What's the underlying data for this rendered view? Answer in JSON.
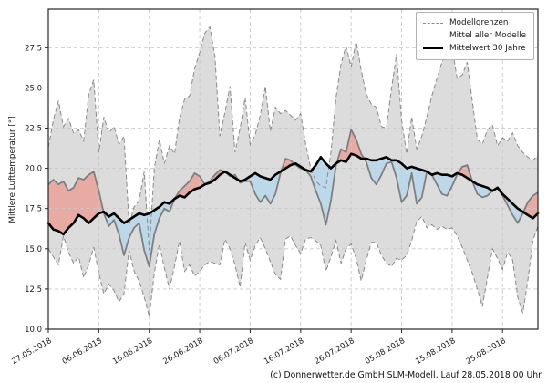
{
  "chart_data": {
    "type": "line",
    "title": "",
    "ylabel": "Mittlere Lufttemperatur [°]",
    "xlabel": "",
    "x_unit": "day",
    "x_start": "27.05.2018",
    "ylim": [
      10,
      29.9
    ],
    "yticks": [
      10.0,
      12.5,
      15.0,
      17.5,
      20.0,
      22.5,
      25.0,
      27.5
    ],
    "ytick_labels": [
      "10.0",
      "12.5",
      "15.0",
      "17.5",
      "20.0",
      "22.5",
      "25.0",
      "27.5"
    ],
    "xtick_days": [
      0,
      10,
      20,
      30,
      40,
      50,
      60,
      70,
      80,
      90
    ],
    "xtick_labels": [
      "27.05.2018",
      "06.06.2018",
      "16.06.2018",
      "26.06.2018",
      "06.07.2018",
      "16.07.2018",
      "26.07.2018",
      "05.08.2018",
      "15.08.2018",
      "25.08.2018"
    ],
    "grid": true,
    "legend": {
      "position": "upper right",
      "entries": [
        {
          "label": "Modellgrenzen",
          "style": "dashed",
          "color": "#8a8a8a"
        },
        {
          "label": "Mittel aller Modelle",
          "style": "solid",
          "color": "#7f7f7f"
        },
        {
          "label": "Mittelwert 30 Jahre",
          "style": "solid-bold",
          "color": "#000000"
        }
      ]
    },
    "fills": {
      "band_color": "#dcdcdc",
      "above_color": "#e8aba4",
      "below_color": "#bdd9e9"
    },
    "line_colors": {
      "bounds": "#8a8a8a",
      "model_mean": "#7f7f7f",
      "climate_mean": "#000000",
      "grid": "#c9c9c9",
      "frame": "#262626"
    },
    "series": [
      {
        "name": "Modellgrenzen (oberes Modell)",
        "values": [
          21.3,
          23.0,
          24.2,
          22.6,
          23.1,
          22.2,
          22.4,
          21.7,
          24.6,
          25.5,
          21.0,
          23.2,
          22.2,
          22.6,
          21.5,
          22.0,
          16.5,
          17.6,
          18.0,
          19.8,
          14.9,
          20.0,
          21.8,
          20.3,
          21.4,
          20.9,
          23.1,
          24.3,
          24.5,
          26.2,
          27.2,
          28.4,
          28.8,
          27.0,
          22.0,
          23.5,
          25.1,
          21.0,
          22.5,
          24.4,
          21.5,
          22.1,
          23.3,
          25.1,
          22.3,
          23.8,
          23.4,
          23.6,
          23.3,
          23.0,
          23.4,
          21.5,
          20.0,
          19.2,
          18.9,
          18.8,
          21.0,
          24.4,
          26.5,
          27.6,
          26.3,
          27.9,
          26.1,
          24.6,
          24.0,
          23.8,
          22.6,
          22.5,
          25.0,
          27.1,
          23.0,
          20.9,
          23.2,
          21.2,
          22.0,
          23.2,
          24.5,
          25.6,
          26.6,
          27.3,
          27.5,
          25.6,
          25.8,
          26.6,
          24.2,
          21.8,
          21.5,
          22.4,
          22.7,
          21.4,
          21.9,
          21.7,
          22.2,
          21.4,
          21.0,
          20.7,
          20.5,
          20.8
        ]
      },
      {
        "name": "Modellgrenzen (unteres Modell)",
        "values": [
          15.0,
          14.5,
          14.0,
          15.8,
          14.8,
          14.1,
          14.5,
          13.2,
          14.0,
          15.1,
          13.5,
          12.2,
          12.8,
          12.4,
          11.7,
          12.2,
          14.9,
          13.6,
          13.0,
          12.0,
          10.8,
          13.5,
          15.3,
          13.8,
          12.5,
          13.9,
          15.5,
          13.6,
          14.0,
          13.3,
          13.6,
          14.0,
          14.2,
          14.1,
          14.0,
          15.6,
          15.0,
          14.0,
          12.6,
          15.4,
          14.3,
          15.2,
          15.7,
          15.0,
          14.2,
          13.4,
          13.1,
          15.6,
          15.8,
          15.2,
          14.7,
          15.6,
          15.7,
          15.5,
          15.2,
          13.6,
          14.5,
          15.5,
          14.1,
          15.0,
          15.3,
          14.4,
          13.0,
          14.3,
          15.4,
          15.4,
          14.6,
          14.1,
          13.9,
          14.4,
          14.3,
          14.6,
          15.5,
          16.7,
          17.0,
          16.3,
          16.5,
          16.2,
          16.4,
          16.2,
          16.3,
          15.8,
          15.1,
          14.3,
          13.5,
          12.5,
          11.4,
          13.2,
          15.0,
          14.4,
          13.7,
          14.8,
          14.3,
          12.0,
          11.0,
          13.0,
          15.5,
          16.4
        ]
      },
      {
        "name": "Mittel aller Modelle",
        "values": [
          19.0,
          19.3,
          19.0,
          19.2,
          18.6,
          18.8,
          19.4,
          19.3,
          19.6,
          19.8,
          18.6,
          17.2,
          16.4,
          16.8,
          15.9,
          14.6,
          15.7,
          16.3,
          16.6,
          14.9,
          13.9,
          15.9,
          16.9,
          17.5,
          17.3,
          18.1,
          18.6,
          18.9,
          19.2,
          19.7,
          19.5,
          19.0,
          19.2,
          19.6,
          19.9,
          19.8,
          19.5,
          19.6,
          19.1,
          19.2,
          19.2,
          18.4,
          17.9,
          18.3,
          17.8,
          18.4,
          19.7,
          20.6,
          20.5,
          20.2,
          20.0,
          19.9,
          19.5,
          18.6,
          17.8,
          16.5,
          18.0,
          20.2,
          21.2,
          21.0,
          22.4,
          21.8,
          20.9,
          20.4,
          19.4,
          19.0,
          19.6,
          20.3,
          20.4,
          19.4,
          17.9,
          18.3,
          19.7,
          17.8,
          18.2,
          19.8,
          19.6,
          19.0,
          18.4,
          18.3,
          18.9,
          19.6,
          20.1,
          20.2,
          19.2,
          18.4,
          18.2,
          18.3,
          18.6,
          18.8,
          18.3,
          17.7,
          17.1,
          16.6,
          17.2,
          17.9,
          18.3,
          18.5
        ]
      },
      {
        "name": "Mittelwert 30 Jahre",
        "values": [
          16.6,
          16.2,
          16.1,
          15.9,
          16.3,
          16.6,
          17.1,
          16.9,
          16.6,
          16.9,
          17.2,
          17.3,
          17.0,
          17.2,
          16.9,
          16.6,
          16.8,
          17.0,
          17.2,
          17.1,
          17.2,
          17.4,
          17.6,
          17.9,
          17.8,
          18.1,
          18.3,
          18.2,
          18.5,
          18.7,
          18.8,
          19.0,
          19.1,
          19.3,
          19.6,
          19.8,
          19.6,
          19.4,
          19.2,
          19.3,
          19.5,
          19.7,
          19.5,
          19.4,
          19.3,
          19.6,
          19.8,
          20.0,
          20.2,
          20.3,
          20.1,
          19.9,
          19.8,
          20.2,
          20.7,
          20.3,
          20.0,
          20.3,
          20.5,
          20.4,
          20.9,
          20.8,
          20.6,
          20.6,
          20.5,
          20.5,
          20.6,
          20.7,
          20.5,
          20.5,
          20.3,
          20.0,
          20.1,
          20.0,
          19.9,
          19.8,
          19.6,
          19.7,
          19.6,
          19.6,
          19.5,
          19.7,
          19.6,
          19.4,
          19.2,
          19.0,
          18.9,
          18.8,
          18.6,
          18.8,
          18.4,
          18.1,
          17.8,
          17.5,
          17.3,
          17.1,
          16.9,
          17.2
        ]
      }
    ],
    "caption": "(c) Donnerwetter.de GmbH SLM-Modell, Lauf 28.05.2018 00 Uhr"
  }
}
